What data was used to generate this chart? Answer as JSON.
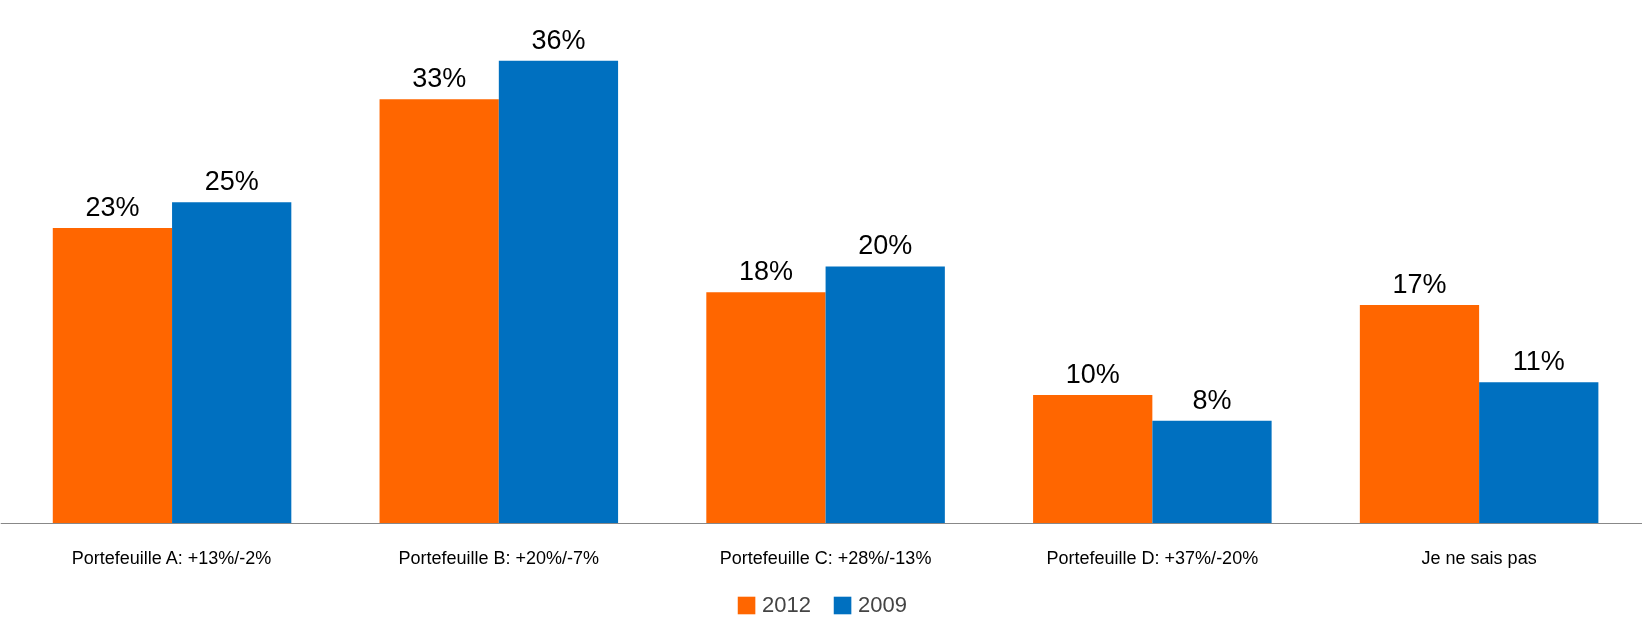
{
  "chart_data": {
    "type": "bar",
    "categories": [
      "Portefeuille A: +13%/-2%",
      "Portefeuille B: +20%/-7%",
      "Portefeuille C: +28%/-13%",
      "Portefeuille D: +37%/-20%",
      "Je ne sais pas"
    ],
    "series": [
      {
        "name": "2012",
        "color": "#ff6600",
        "values": [
          23,
          33,
          18,
          10,
          17
        ],
        "value_labels": [
          "23%",
          "33%",
          "18%",
          "10%",
          "17%"
        ]
      },
      {
        "name": "2009",
        "color": "#0070c0",
        "values": [
          25,
          36,
          20,
          8,
          11
        ],
        "value_labels": [
          "25%",
          "36%",
          "20%",
          "8%",
          "11%"
        ]
      }
    ],
    "legend": "bottom",
    "grid": false
  }
}
